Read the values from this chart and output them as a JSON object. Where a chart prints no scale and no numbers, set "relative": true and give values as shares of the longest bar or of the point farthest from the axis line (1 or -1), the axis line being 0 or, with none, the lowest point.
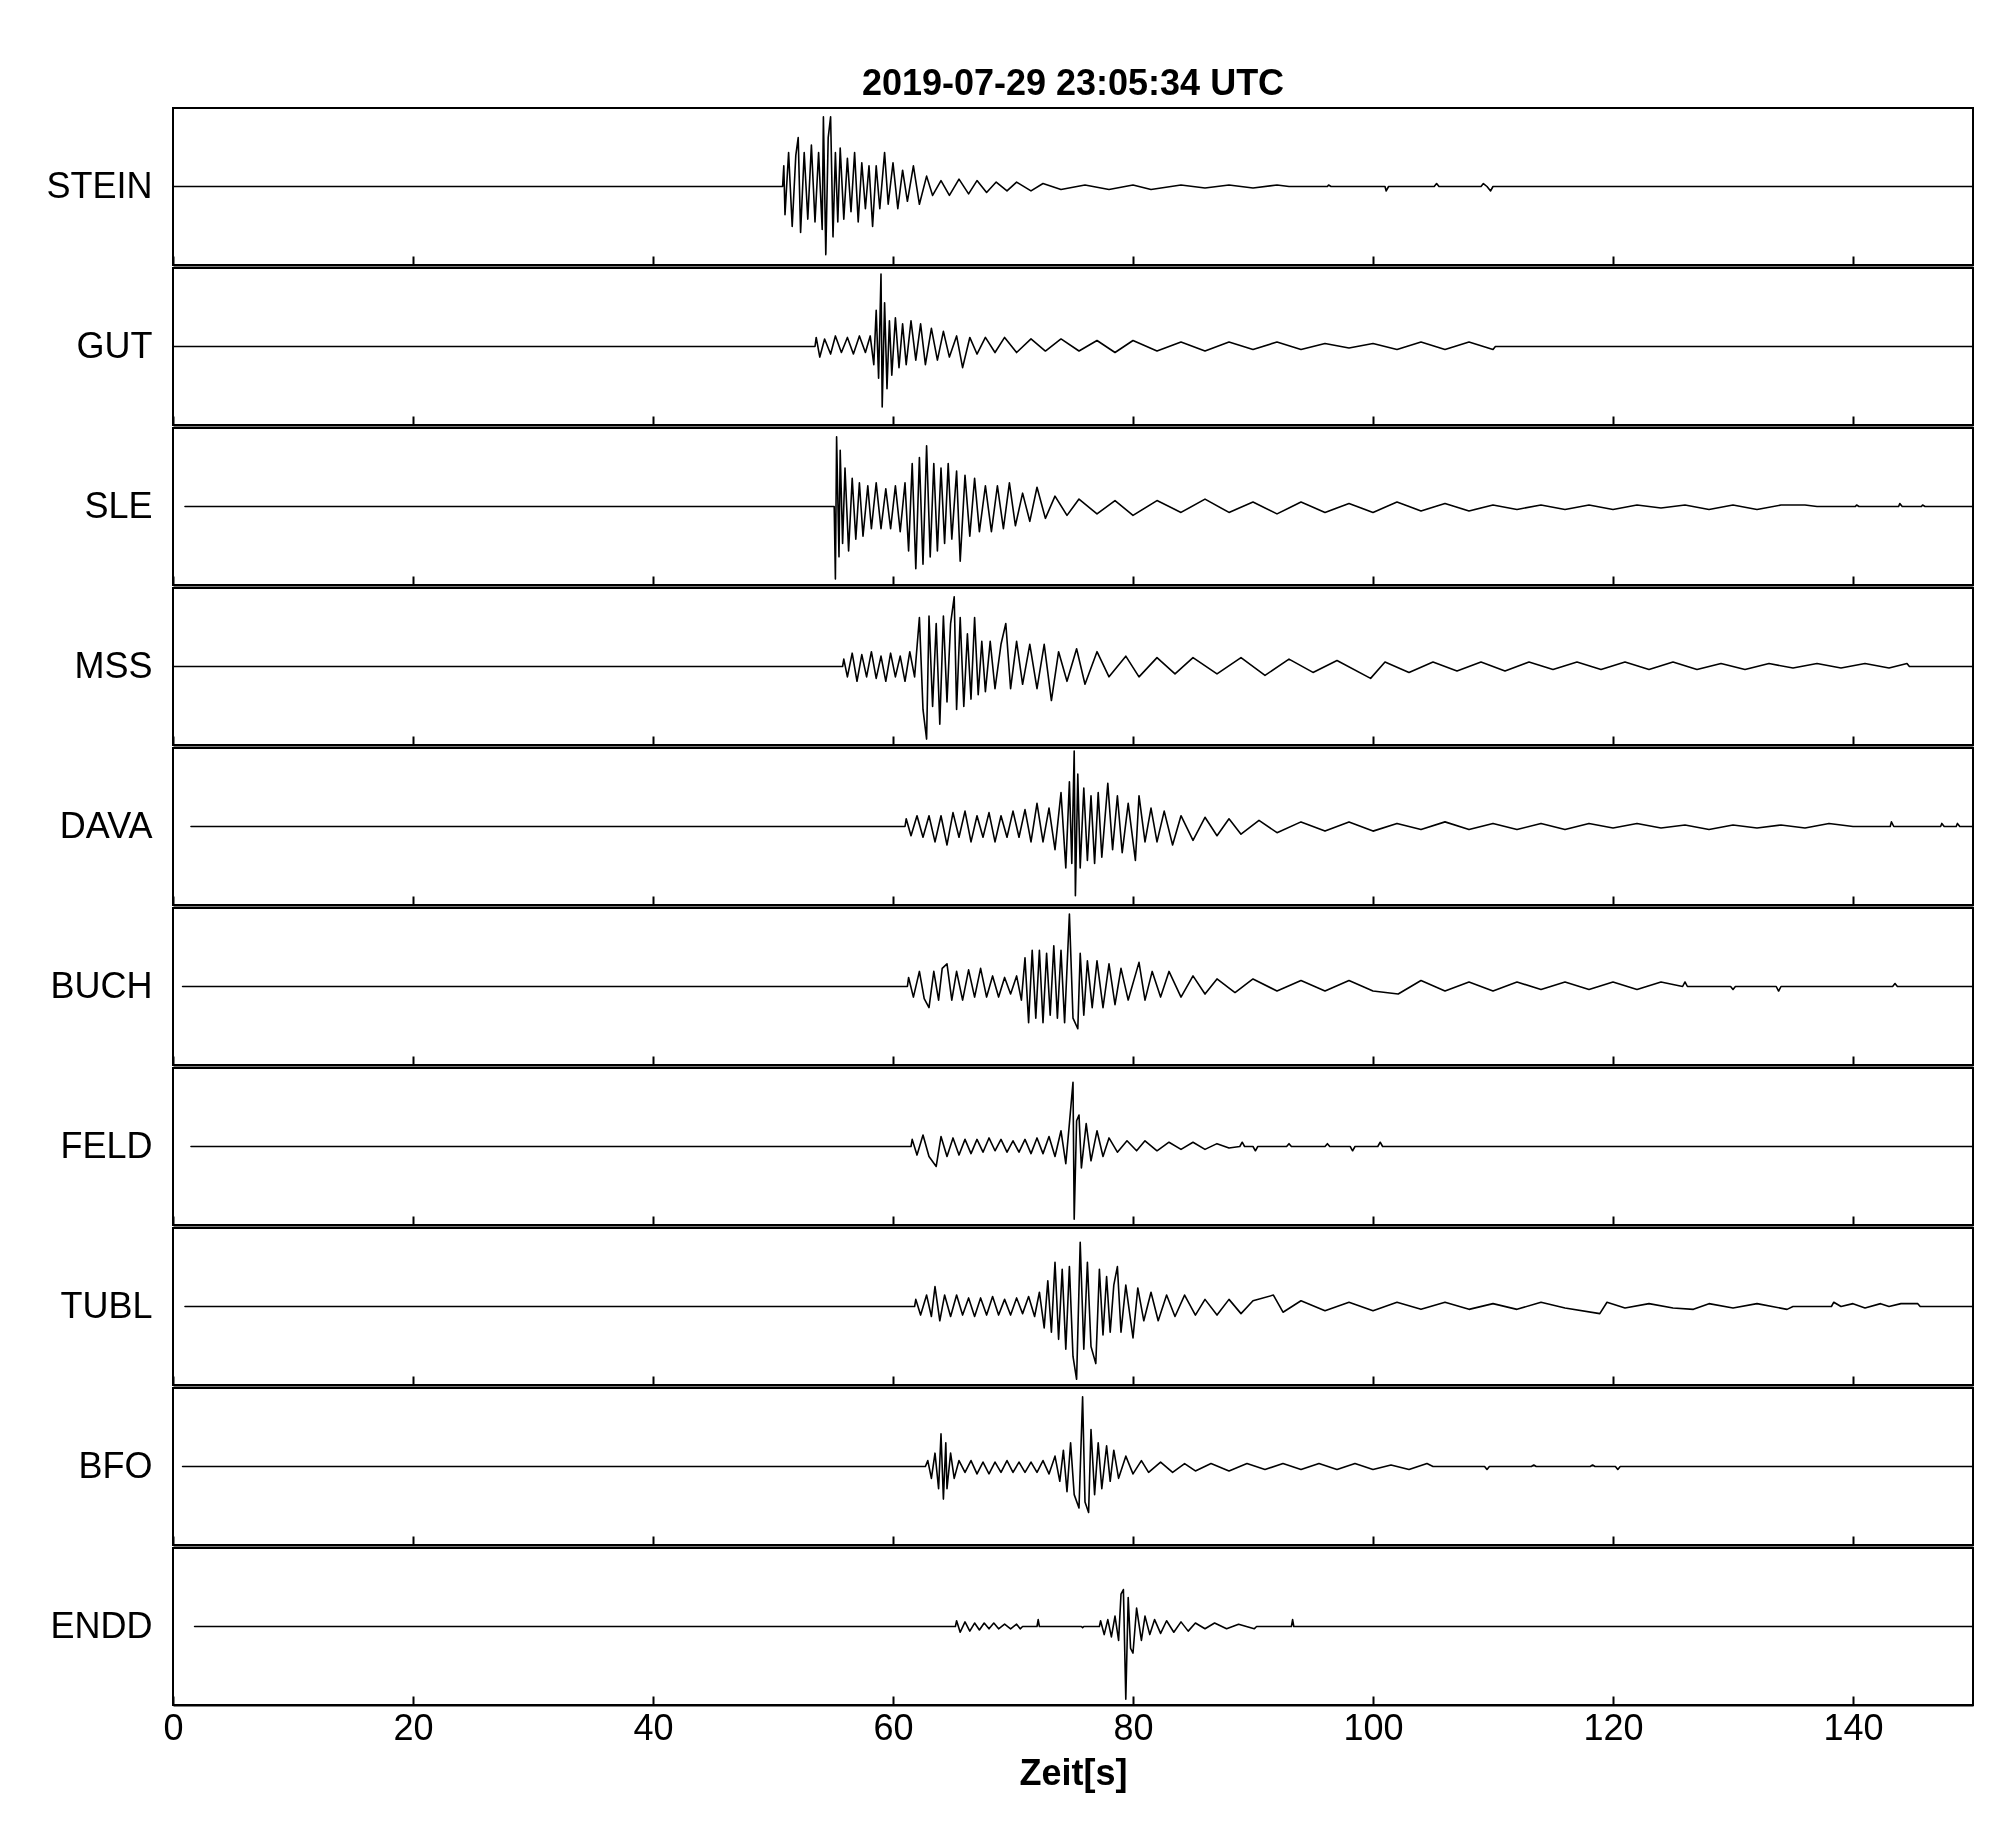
{
  "chart_data": [
    {
      "type": "line",
      "title": "2019-07-29 23:05:34 UTC",
      "ylabel": "STEIN",
      "color": "#000000",
      "relative": true,
      "xlim": [
        0,
        150
      ],
      "xticks": [
        0,
        20,
        40,
        60,
        80,
        100,
        120,
        140
      ],
      "tick_labels": false,
      "x": [
        0,
        50.8,
        50.9,
        51,
        51.3,
        51.6,
        51.9,
        52.1,
        52.3,
        52.6,
        52.9,
        53.2,
        53.5,
        53.8,
        54.1,
        54.2,
        54.4,
        54.6,
        54.8,
        55,
        55.2,
        55.4,
        55.6,
        55.9,
        56.2,
        56.5,
        56.8,
        57.1,
        57.4,
        57.7,
        58,
        58.3,
        58.6,
        58.9,
        59.3,
        59.6,
        60,
        60.4,
        60.8,
        61.2,
        61.7,
        62.2,
        62.8,
        63.3,
        64,
        64.7,
        65.5,
        66.3,
        67,
        67.8,
        68.6,
        69.5,
        70.3,
        71.5,
        72.5,
        74,
        76,
        78,
        80,
        81.5,
        84,
        86,
        88,
        90,
        92,
        93,
        96.2,
        96.3,
        96.5,
        101,
        101.1,
        101.3,
        105.1,
        105.3,
        105.5,
        109,
        109.2,
        109.5,
        109.8,
        110,
        150
      ],
      "values": [
        0.53,
        0.53,
        0.67,
        0.34,
        0.76,
        0.26,
        0.74,
        0.86,
        0.22,
        0.76,
        0.31,
        0.81,
        0.29,
        0.76,
        0.24,
        1,
        0.07,
        0.86,
        1,
        0.19,
        0.76,
        0.29,
        0.79,
        0.31,
        0.72,
        0.36,
        0.76,
        0.29,
        0.69,
        0.38,
        0.67,
        0.26,
        0.67,
        0.38,
        0.76,
        0.41,
        0.69,
        0.38,
        0.64,
        0.43,
        0.67,
        0.41,
        0.6,
        0.47,
        0.57,
        0.47,
        0.58,
        0.48,
        0.57,
        0.49,
        0.56,
        0.5,
        0.56,
        0.5,
        0.55,
        0.51,
        0.54,
        0.51,
        0.54,
        0.51,
        0.54,
        0.52,
        0.54,
        0.52,
        0.54,
        0.53,
        0.53,
        0.54,
        0.53,
        0.53,
        0.5,
        0.53,
        0.53,
        0.55,
        0.53,
        0.53,
        0.55,
        0.53,
        0.5,
        0.53,
        0.53
      ]
    },
    {
      "type": "line",
      "ylabel": "GUT",
      "color": "#000000",
      "relative": true,
      "xlim": [
        0,
        150
      ],
      "xticks": [
        0,
        20,
        40,
        60,
        80,
        100,
        120,
        140
      ],
      "tick_labels": false,
      "x": [
        0,
        53.5,
        53.6,
        53.9,
        54.3,
        54.8,
        55.2,
        55.7,
        56.2,
        56.7,
        57.2,
        57.7,
        58.1,
        58.4,
        58.6,
        58.8,
        59,
        59.1,
        59.3,
        59.5,
        59.7,
        59.9,
        60.2,
        60.5,
        60.8,
        61.1,
        61.5,
        61.9,
        62.3,
        62.7,
        63.2,
        63.7,
        64.2,
        64.7,
        65.3,
        65.8,
        66.4,
        67,
        67.7,
        68.5,
        69.3,
        70.3,
        71.5,
        72.7,
        74,
        75.5,
        77,
        78.5,
        80,
        82,
        84,
        86,
        88,
        90,
        92,
        94,
        96,
        98,
        100,
        102,
        104,
        106,
        108,
        110,
        110.2,
        150
      ],
      "values": [
        0.52,
        0.52,
        0.58,
        0.45,
        0.57,
        0.47,
        0.59,
        0.48,
        0.58,
        0.47,
        0.59,
        0.48,
        0.59,
        0.4,
        0.76,
        0.31,
        1,
        0.12,
        0.81,
        0.24,
        0.69,
        0.33,
        0.71,
        0.38,
        0.67,
        0.4,
        0.69,
        0.43,
        0.67,
        0.4,
        0.64,
        0.43,
        0.62,
        0.45,
        0.59,
        0.38,
        0.58,
        0.47,
        0.58,
        0.48,
        0.58,
        0.48,
        0.57,
        0.49,
        0.57,
        0.49,
        0.56,
        0.48,
        0.56,
        0.49,
        0.55,
        0.49,
        0.55,
        0.5,
        0.55,
        0.5,
        0.54,
        0.51,
        0.54,
        0.5,
        0.55,
        0.5,
        0.55,
        0.5,
        0.52,
        0.52
      ]
    },
    {
      "type": "line",
      "ylabel": "SLE",
      "color": "#000000",
      "relative": true,
      "xlim": [
        0,
        150
      ],
      "xticks": [
        0,
        20,
        40,
        60,
        80,
        100,
        120,
        140
      ],
      "tick_labels": false,
      "x": [
        1,
        55.1,
        55.2,
        55.3,
        55.5,
        55.6,
        55.8,
        56,
        56.3,
        56.6,
        56.9,
        57.2,
        57.5,
        57.9,
        58.2,
        58.6,
        59,
        59.4,
        59.8,
        60.2,
        60.6,
        61,
        61.3,
        61.6,
        61.9,
        62.2,
        62.5,
        62.8,
        63.1,
        63.4,
        63.7,
        64,
        64.3,
        64.6,
        64.9,
        65.3,
        65.6,
        66,
        66.4,
        66.8,
        67.2,
        67.7,
        68.2,
        68.7,
        69.2,
        69.7,
        70.2,
        70.8,
        71.4,
        72,
        72.7,
        73.5,
        74.5,
        75.5,
        77,
        78.5,
        80,
        82,
        84,
        86,
        88,
        90,
        92,
        94,
        96,
        98,
        100,
        102,
        104,
        106,
        108,
        110,
        112,
        114,
        116,
        118,
        120,
        122,
        124,
        126,
        128,
        130,
        132,
        134,
        136,
        137,
        140.2,
        140.3,
        140.5,
        143.8,
        143.9,
        144.1,
        145.7,
        145.8,
        146,
        150
      ],
      "values": [
        0.53,
        0.53,
        0.04,
        1,
        0.19,
        0.91,
        0.28,
        0.79,
        0.23,
        0.72,
        0.31,
        0.69,
        0.33,
        0.67,
        0.38,
        0.69,
        0.38,
        0.65,
        0.38,
        0.67,
        0.36,
        0.69,
        0.23,
        0.82,
        0.11,
        0.86,
        0.14,
        0.94,
        0.19,
        0.82,
        0.23,
        0.79,
        0.28,
        0.82,
        0.31,
        0.77,
        0.16,
        0.74,
        0.33,
        0.72,
        0.36,
        0.67,
        0.36,
        0.67,
        0.38,
        0.69,
        0.4,
        0.62,
        0.43,
        0.66,
        0.45,
        0.6,
        0.47,
        0.58,
        0.48,
        0.57,
        0.47,
        0.57,
        0.49,
        0.58,
        0.49,
        0.56,
        0.48,
        0.56,
        0.49,
        0.55,
        0.49,
        0.56,
        0.5,
        0.55,
        0.5,
        0.54,
        0.51,
        0.54,
        0.51,
        0.54,
        0.51,
        0.54,
        0.52,
        0.54,
        0.51,
        0.54,
        0.51,
        0.54,
        0.54,
        0.53,
        0.53,
        0.54,
        0.53,
        0.53,
        0.55,
        0.53,
        0.53,
        0.54,
        0.53,
        0.53
      ]
    },
    {
      "type": "line",
      "ylabel": "MSS",
      "color": "#000000",
      "relative": true,
      "xlim": [
        0,
        150
      ],
      "xticks": [
        0,
        20,
        40,
        60,
        80,
        100,
        120,
        140
      ],
      "tick_labels": false,
      "x": [
        0,
        55.8,
        55.9,
        56.2,
        56.6,
        57,
        57.4,
        57.8,
        58.2,
        58.6,
        59,
        59.4,
        59.8,
        60.2,
        60.6,
        61,
        61.4,
        61.8,
        62.2,
        62.5,
        62.8,
        63,
        63.3,
        63.6,
        63.9,
        64.2,
        64.5,
        64.8,
        65.1,
        65.3,
        65.6,
        65.9,
        66.2,
        66.5,
        66.8,
        67.1,
        67.4,
        67.7,
        68.1,
        68.5,
        69,
        69.4,
        69.8,
        70.3,
        70.8,
        71.4,
        72,
        72.6,
        73.2,
        73.8,
        74.5,
        75.3,
        76,
        77,
        78,
        79.4,
        80.5,
        82,
        83.5,
        85,
        87,
        89,
        91,
        93,
        95,
        97,
        99.8,
        101,
        103,
        105,
        107,
        109,
        111,
        113,
        115,
        117,
        119,
        121,
        123,
        125,
        127,
        129,
        131,
        133,
        135,
        137,
        139,
        141,
        143,
        144.5,
        144.7,
        150
      ],
      "values": [
        0.53,
        0.53,
        0.58,
        0.46,
        0.62,
        0.43,
        0.61,
        0.46,
        0.63,
        0.45,
        0.6,
        0.43,
        0.62,
        0.46,
        0.6,
        0.43,
        0.63,
        0.46,
        0.86,
        0.24,
        0.04,
        0.87,
        0.26,
        0.82,
        0.14,
        0.87,
        0.29,
        0.82,
        1,
        0.24,
        0.86,
        0.26,
        0.75,
        0.31,
        0.86,
        0.34,
        0.7,
        0.36,
        0.7,
        0.38,
        0.68,
        0.82,
        0.38,
        0.7,
        0.41,
        0.68,
        0.38,
        0.68,
        0.3,
        0.63,
        0.43,
        0.65,
        0.41,
        0.63,
        0.46,
        0.6,
        0.46,
        0.59,
        0.48,
        0.59,
        0.48,
        0.59,
        0.47,
        0.58,
        0.49,
        0.57,
        0.45,
        0.56,
        0.49,
        0.56,
        0.5,
        0.56,
        0.5,
        0.56,
        0.51,
        0.56,
        0.51,
        0.56,
        0.51,
        0.56,
        0.51,
        0.55,
        0.51,
        0.55,
        0.52,
        0.55,
        0.52,
        0.55,
        0.52,
        0.55,
        0.53,
        0.53
      ]
    },
    {
      "type": "line",
      "ylabel": "DAVA",
      "color": "#000000",
      "relative": true,
      "xlim": [
        0,
        150
      ],
      "xticks": [
        0,
        20,
        40,
        60,
        80,
        100,
        120,
        140
      ],
      "tick_labels": false,
      "x": [
        1.5,
        61,
        61.1,
        61.5,
        62,
        62.5,
        63,
        63.5,
        64,
        64.5,
        65,
        65.5,
        66,
        66.5,
        67,
        67.5,
        68,
        68.5,
        69,
        69.5,
        70,
        70.5,
        71,
        71.5,
        72,
        72.5,
        73,
        73.5,
        74,
        74.4,
        74.7,
        74.9,
        75.1,
        75.2,
        75.4,
        75.6,
        75.9,
        76.2,
        76.5,
        76.8,
        77.1,
        77.4,
        77.9,
        78.3,
        78.7,
        79.1,
        79.6,
        80.2,
        80.5,
        81,
        81.5,
        82,
        82.6,
        83.3,
        84,
        85,
        86,
        87,
        88,
        89,
        90.5,
        92,
        94,
        96,
        98,
        100,
        102,
        104,
        106,
        108,
        110,
        112,
        114,
        116,
        118,
        120,
        122,
        124,
        126,
        128,
        130,
        132,
        134,
        136,
        138,
        140,
        143.1,
        143.2,
        143.4,
        147.3,
        147.4,
        147.6,
        148.6,
        148.7,
        148.9,
        150
      ],
      "values": [
        0.51,
        0.51,
        0.56,
        0.45,
        0.58,
        0.44,
        0.58,
        0.41,
        0.58,
        0.39,
        0.6,
        0.44,
        0.61,
        0.41,
        0.58,
        0.44,
        0.6,
        0.41,
        0.58,
        0.44,
        0.61,
        0.44,
        0.62,
        0.41,
        0.66,
        0.41,
        0.63,
        0.36,
        0.73,
        0.24,
        0.8,
        0.27,
        1,
        0.06,
        0.85,
        0.24,
        0.76,
        0.29,
        0.71,
        0.27,
        0.73,
        0.31,
        0.79,
        0.36,
        0.71,
        0.34,
        0.66,
        0.29,
        0.71,
        0.41,
        0.63,
        0.41,
        0.61,
        0.39,
        0.58,
        0.42,
        0.57,
        0.45,
        0.56,
        0.46,
        0.55,
        0.47,
        0.54,
        0.48,
        0.54,
        0.48,
        0.53,
        0.49,
        0.54,
        0.49,
        0.53,
        0.49,
        0.53,
        0.49,
        0.53,
        0.5,
        0.53,
        0.5,
        0.52,
        0.49,
        0.52,
        0.5,
        0.52,
        0.5,
        0.53,
        0.51,
        0.51,
        0.54,
        0.51,
        0.51,
        0.53,
        0.51,
        0.51,
        0.53,
        0.51,
        0.51
      ]
    },
    {
      "type": "line",
      "ylabel": "BUCH",
      "color": "#000000",
      "relative": true,
      "xlim": [
        0,
        150
      ],
      "xticks": [
        0,
        20,
        40,
        60,
        80,
        100,
        120,
        140
      ],
      "tick_labels": false,
      "x": [
        0.8,
        61.2,
        61.3,
        61.7,
        62.2,
        62.6,
        63,
        63.4,
        63.8,
        64.1,
        64.5,
        64.9,
        65.3,
        65.8,
        66.3,
        66.8,
        67.3,
        67.8,
        68.3,
        68.8,
        69.3,
        69.8,
        70.3,
        70.7,
        71,
        71.3,
        71.6,
        71.9,
        72.2,
        72.5,
        72.8,
        73.1,
        73.4,
        73.7,
        74,
        74.3,
        74.7,
        75,
        75.4,
        75.6,
        75.9,
        76.2,
        76.6,
        77,
        77.5,
        78,
        78.5,
        79,
        79.6,
        80.5,
        81,
        81.6,
        82.3,
        83,
        84,
        85,
        86,
        87,
        88.5,
        90,
        92,
        94,
        96,
        98,
        100,
        102.1,
        104,
        106,
        108,
        110,
        112,
        114,
        116,
        118,
        120,
        122,
        124,
        125.8,
        126,
        126.2,
        129.8,
        130,
        130.2,
        133.6,
        133.8,
        134,
        143.3,
        143.5,
        143.7,
        150
      ],
      "values": [
        0.52,
        0.52,
        0.58,
        0.45,
        0.62,
        0.44,
        0.38,
        0.62,
        0.43,
        0.64,
        0.67,
        0.43,
        0.62,
        0.43,
        0.63,
        0.45,
        0.64,
        0.45,
        0.59,
        0.45,
        0.58,
        0.47,
        0.59,
        0.43,
        0.71,
        0.28,
        0.76,
        0.31,
        0.76,
        0.28,
        0.74,
        0.33,
        0.79,
        0.31,
        0.76,
        0.28,
        1,
        0.31,
        0.24,
        0.74,
        0.33,
        0.69,
        0.38,
        0.69,
        0.38,
        0.67,
        0.4,
        0.64,
        0.43,
        0.68,
        0.43,
        0.62,
        0.45,
        0.62,
        0.45,
        0.59,
        0.47,
        0.57,
        0.48,
        0.57,
        0.49,
        0.56,
        0.49,
        0.56,
        0.49,
        0.47,
        0.56,
        0.49,
        0.55,
        0.49,
        0.55,
        0.5,
        0.55,
        0.5,
        0.55,
        0.5,
        0.55,
        0.52,
        0.55,
        0.52,
        0.52,
        0.5,
        0.52,
        0.52,
        0.49,
        0.52,
        0.52,
        0.54,
        0.52,
        0.52
      ]
    },
    {
      "type": "line",
      "ylabel": "FELD",
      "color": "#000000",
      "relative": true,
      "xlim": [
        0,
        150
      ],
      "xticks": [
        0,
        20,
        40,
        60,
        80,
        100,
        120,
        140
      ],
      "tick_labels": false,
      "x": [
        1.5,
        61.5,
        61.6,
        62,
        62.5,
        63,
        63.6,
        64,
        64.5,
        65,
        65.5,
        66,
        66.5,
        67,
        67.5,
        68,
        68.5,
        69,
        69.5,
        70,
        70.5,
        71,
        71.5,
        72,
        72.5,
        73,
        73.5,
        74,
        74.4,
        74.7,
        75,
        75.1,
        75.3,
        75.5,
        75.7,
        76.1,
        76.5,
        77,
        77.5,
        78,
        78.7,
        79.5,
        80.3,
        81,
        82,
        83,
        84,
        85,
        86,
        87,
        88,
        88.9,
        89.1,
        89.3,
        90,
        90.2,
        90.4,
        92.8,
        93,
        93.2,
        96,
        96.2,
        96.4,
        98.1,
        98.3,
        98.5,
        100.4,
        100.6,
        100.8,
        150
      ],
      "values": [
        0.55,
        0.55,
        0.6,
        0.49,
        0.63,
        0.48,
        0.41,
        0.62,
        0.48,
        0.61,
        0.49,
        0.6,
        0.5,
        0.6,
        0.51,
        0.61,
        0.52,
        0.6,
        0.51,
        0.59,
        0.51,
        0.6,
        0.5,
        0.61,
        0.5,
        0.62,
        0.48,
        0.66,
        0.43,
        0.71,
        1,
        0.04,
        0.73,
        0.77,
        0.4,
        0.71,
        0.45,
        0.66,
        0.48,
        0.61,
        0.51,
        0.59,
        0.52,
        0.59,
        0.52,
        0.58,
        0.53,
        0.58,
        0.53,
        0.57,
        0.54,
        0.55,
        0.58,
        0.55,
        0.55,
        0.52,
        0.55,
        0.55,
        0.57,
        0.55,
        0.55,
        0.57,
        0.55,
        0.55,
        0.52,
        0.55,
        0.55,
        0.58,
        0.55,
        0.55
      ]
    },
    {
      "type": "line",
      "ylabel": "TUBL",
      "color": "#000000",
      "relative": true,
      "xlim": [
        0,
        150
      ],
      "xticks": [
        0,
        20,
        40,
        60,
        80,
        100,
        120,
        140
      ],
      "tick_labels": false,
      "x": [
        1,
        61.8,
        61.9,
        62.3,
        62.8,
        63.2,
        63.5,
        63.9,
        64.3,
        64.8,
        65.3,
        65.8,
        66.3,
        66.8,
        67.3,
        67.8,
        68.3,
        68.8,
        69.3,
        69.8,
        70.3,
        70.8,
        71.3,
        71.8,
        72.2,
        72.6,
        72.9,
        73.2,
        73.5,
        73.8,
        74.1,
        74.4,
        74.7,
        75,
        75.3,
        75.6,
        75.9,
        76.2,
        76.5,
        76.9,
        77.2,
        77.5,
        77.8,
        78.1,
        78.4,
        78.7,
        79,
        79.4,
        80,
        80.4,
        80.9,
        81.5,
        82.1,
        82.8,
        83.5,
        84.3,
        85.2,
        86,
        87,
        88,
        89,
        90,
        91.7,
        92.5,
        94,
        96,
        98,
        100,
        102,
        104,
        106,
        108,
        110,
        112,
        114,
        116,
        118.9,
        119.5,
        121,
        123,
        125,
        126.7,
        128,
        130,
        132,
        134.5,
        135,
        138.2,
        138.4,
        139,
        140,
        141,
        142.3,
        143,
        144,
        145.4,
        145.6,
        150
      ],
      "values": [
        0.55,
        0.55,
        0.6,
        0.49,
        0.63,
        0.48,
        0.69,
        0.45,
        0.63,
        0.48,
        0.63,
        0.49,
        0.61,
        0.48,
        0.61,
        0.49,
        0.62,
        0.49,
        0.6,
        0.49,
        0.61,
        0.5,
        0.62,
        0.48,
        0.65,
        0.4,
        0.73,
        0.37,
        0.86,
        0.32,
        0.81,
        0.25,
        0.83,
        0.2,
        0.04,
        1,
        0.25,
        0.86,
        0.27,
        0.15,
        0.81,
        0.35,
        0.76,
        0.37,
        0.7,
        0.83,
        0.37,
        0.7,
        0.33,
        0.68,
        0.45,
        0.65,
        0.45,
        0.63,
        0.48,
        0.63,
        0.49,
        0.6,
        0.49,
        0.6,
        0.5,
        0.59,
        0.63,
        0.51,
        0.59,
        0.52,
        0.58,
        0.52,
        0.58,
        0.53,
        0.58,
        0.53,
        0.57,
        0.53,
        0.58,
        0.54,
        0.5,
        0.58,
        0.54,
        0.57,
        0.54,
        0.53,
        0.57,
        0.54,
        0.57,
        0.53,
        0.55,
        0.55,
        0.58,
        0.55,
        0.57,
        0.54,
        0.57,
        0.55,
        0.57,
        0.57,
        0.55,
        0.55
      ]
    },
    {
      "type": "line",
      "ylabel": "BFO",
      "color": "#000000",
      "relative": true,
      "xlim": [
        0,
        150
      ],
      "xticks": [
        0,
        20,
        40,
        60,
        80,
        100,
        120,
        140
      ],
      "tick_labels": false,
      "x": [
        0.8,
        62.7,
        62.9,
        63.2,
        63.5,
        63.8,
        64,
        64.2,
        64.4,
        64.5,
        64.8,
        65.1,
        65.5,
        66,
        66.5,
        67,
        67.5,
        68,
        68.5,
        69,
        69.5,
        70,
        70.5,
        71,
        71.5,
        72,
        72.5,
        73,
        73.5,
        73.9,
        74.2,
        74.5,
        74.8,
        75.1,
        75.5,
        75.8,
        76,
        76.3,
        76.5,
        76.8,
        77.1,
        77.4,
        77.8,
        78.1,
        78.4,
        78.8,
        79.4,
        80,
        80.7,
        81.3,
        82.3,
        83.3,
        84.3,
        85.2,
        86.5,
        88,
        89.5,
        91,
        92.5,
        94,
        95.5,
        97,
        98.5,
        100,
        101.5,
        103,
        104.5,
        105,
        109.3,
        109.5,
        109.7,
        113.2,
        113.4,
        113.6,
        118.1,
        118.3,
        118.5,
        120.2,
        120.4,
        120.6,
        150
      ],
      "values": [
        0.53,
        0.53,
        0.57,
        0.45,
        0.62,
        0.38,
        0.75,
        0.31,
        0.69,
        0.38,
        0.62,
        0.45,
        0.57,
        0.49,
        0.57,
        0.48,
        0.56,
        0.48,
        0.56,
        0.49,
        0.57,
        0.49,
        0.56,
        0.49,
        0.56,
        0.49,
        0.57,
        0.48,
        0.6,
        0.43,
        0.64,
        0.36,
        0.69,
        0.34,
        0.25,
        1,
        0.29,
        0.22,
        0.78,
        0.34,
        0.69,
        0.38,
        0.67,
        0.43,
        0.64,
        0.45,
        0.6,
        0.48,
        0.57,
        0.49,
        0.56,
        0.49,
        0.55,
        0.5,
        0.55,
        0.5,
        0.55,
        0.51,
        0.55,
        0.51,
        0.55,
        0.51,
        0.55,
        0.51,
        0.54,
        0.51,
        0.55,
        0.53,
        0.53,
        0.51,
        0.53,
        0.53,
        0.54,
        0.53,
        0.53,
        0.54,
        0.53,
        0.53,
        0.51,
        0.53,
        0.53
      ]
    },
    {
      "type": "line",
      "ylabel": "ENDD",
      "xlabel": "Zeit[s]",
      "color": "#000000",
      "relative": true,
      "xlim": [
        0,
        150
      ],
      "xticks": [
        0,
        20,
        40,
        60,
        80,
        100,
        120,
        140
      ],
      "tick_labels": "x",
      "x": [
        1.8,
        65.2,
        65.3,
        65.6,
        66,
        66.4,
        66.8,
        67.2,
        67.6,
        68,
        68.4,
        68.8,
        69.3,
        69.8,
        70.3,
        70.6,
        70.8,
        72,
        72.1,
        72.2,
        75.7,
        75.8,
        75.9,
        77.2,
        77.3,
        77.6,
        77.9,
        78.2,
        78.5,
        78.8,
        79,
        79.2,
        79.4,
        79.6,
        79.8,
        80,
        80.3,
        80.7,
        81,
        81.4,
        81.8,
        82.3,
        82.8,
        83.4,
        84,
        84.6,
        85.2,
        86,
        86.8,
        87.8,
        88.8,
        90.1,
        90.3,
        93.2,
        93.3,
        93.4,
        150
      ],
      "values": [
        0.68,
        0.68,
        0.73,
        0.63,
        0.72,
        0.64,
        0.71,
        0.65,
        0.71,
        0.66,
        0.71,
        0.66,
        0.7,
        0.66,
        0.7,
        0.66,
        0.68,
        0.68,
        0.74,
        0.68,
        0.68,
        0.67,
        0.68,
        0.68,
        0.73,
        0.61,
        0.74,
        0.59,
        0.77,
        0.56,
        0.96,
        1,
        0.05,
        0.93,
        0.49,
        0.45,
        0.84,
        0.56,
        0.77,
        0.61,
        0.74,
        0.62,
        0.73,
        0.63,
        0.72,
        0.64,
        0.71,
        0.66,
        0.71,
        0.66,
        0.7,
        0.66,
        0.68,
        0.68,
        0.74,
        0.68,
        0.68
      ]
    }
  ]
}
